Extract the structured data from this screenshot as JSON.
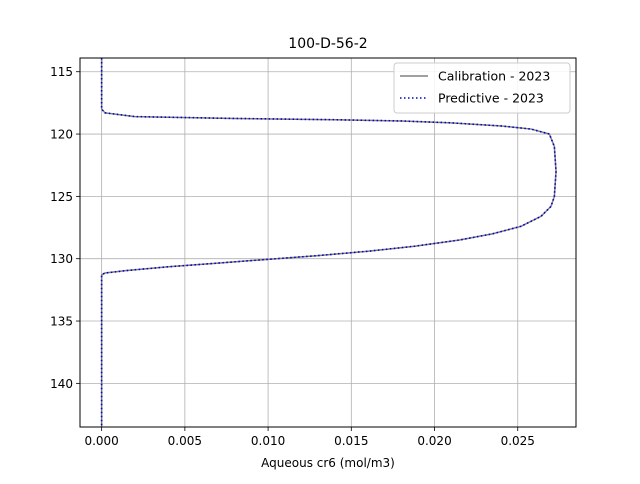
{
  "chart_data": {
    "type": "line",
    "title": "100-D-56-2",
    "xlabel": "Aqueous cr6 (mol/m3)",
    "ylabel": "",
    "xlim": [
      -0.0013,
      0.0285
    ],
    "ylim": [
      143.5,
      113.9
    ],
    "y_inverted": true,
    "grid": true,
    "legend_position": "upper right",
    "xticks": [
      {
        "value": 0.0,
        "label": "0.000"
      },
      {
        "value": 0.005,
        "label": "0.005"
      },
      {
        "value": 0.01,
        "label": "0.010"
      },
      {
        "value": 0.015,
        "label": "0.015"
      },
      {
        "value": 0.02,
        "label": "0.020"
      },
      {
        "value": 0.025,
        "label": "0.025"
      }
    ],
    "yticks": [
      {
        "value": 115,
        "label": "115"
      },
      {
        "value": 120,
        "label": "120"
      },
      {
        "value": 125,
        "label": "125"
      },
      {
        "value": 130,
        "label": "130"
      },
      {
        "value": 135,
        "label": "135"
      },
      {
        "value": 140,
        "label": "140"
      }
    ],
    "series": [
      {
        "name": "Calibration - 2023",
        "color": "#808080",
        "style": "solid",
        "points": [
          [
            0.0,
            113.9
          ],
          [
            0.0,
            118.0
          ],
          [
            0.0002,
            118.3
          ],
          [
            0.002,
            118.6
          ],
          [
            0.008,
            118.75
          ],
          [
            0.014,
            118.85
          ],
          [
            0.018,
            118.95
          ],
          [
            0.021,
            119.1
          ],
          [
            0.024,
            119.35
          ],
          [
            0.0258,
            119.6
          ],
          [
            0.0269,
            120.0
          ],
          [
            0.0272,
            121.0
          ],
          [
            0.0273,
            123.0
          ],
          [
            0.0272,
            125.0
          ],
          [
            0.027,
            125.8
          ],
          [
            0.0264,
            126.6
          ],
          [
            0.0252,
            127.4
          ],
          [
            0.0235,
            128.0
          ],
          [
            0.0215,
            128.5
          ],
          [
            0.0188,
            129.0
          ],
          [
            0.016,
            129.4
          ],
          [
            0.013,
            129.75
          ],
          [
            0.01,
            130.05
          ],
          [
            0.007,
            130.35
          ],
          [
            0.004,
            130.65
          ],
          [
            0.0015,
            130.95
          ],
          [
            0.0002,
            131.15
          ],
          [
            0.0,
            131.3
          ],
          [
            0.0,
            143.5
          ]
        ]
      },
      {
        "name": "Predictive - 2023",
        "color": "#0000cc",
        "style": "dotted",
        "points": [
          [
            0.0,
            113.9
          ],
          [
            0.0,
            118.0
          ],
          [
            0.0002,
            118.3
          ],
          [
            0.002,
            118.6
          ],
          [
            0.008,
            118.75
          ],
          [
            0.014,
            118.85
          ],
          [
            0.018,
            118.95
          ],
          [
            0.021,
            119.1
          ],
          [
            0.024,
            119.35
          ],
          [
            0.0258,
            119.6
          ],
          [
            0.0269,
            120.0
          ],
          [
            0.0272,
            121.0
          ],
          [
            0.0273,
            123.0
          ],
          [
            0.0272,
            125.0
          ],
          [
            0.027,
            125.8
          ],
          [
            0.0264,
            126.6
          ],
          [
            0.0252,
            127.4
          ],
          [
            0.0235,
            128.0
          ],
          [
            0.0215,
            128.5
          ],
          [
            0.0188,
            129.0
          ],
          [
            0.016,
            129.4
          ],
          [
            0.013,
            129.75
          ],
          [
            0.01,
            130.05
          ],
          [
            0.007,
            130.35
          ],
          [
            0.004,
            130.65
          ],
          [
            0.0015,
            130.95
          ],
          [
            0.0002,
            131.15
          ],
          [
            0.0,
            131.3
          ],
          [
            0.0,
            143.5
          ]
        ]
      }
    ]
  }
}
